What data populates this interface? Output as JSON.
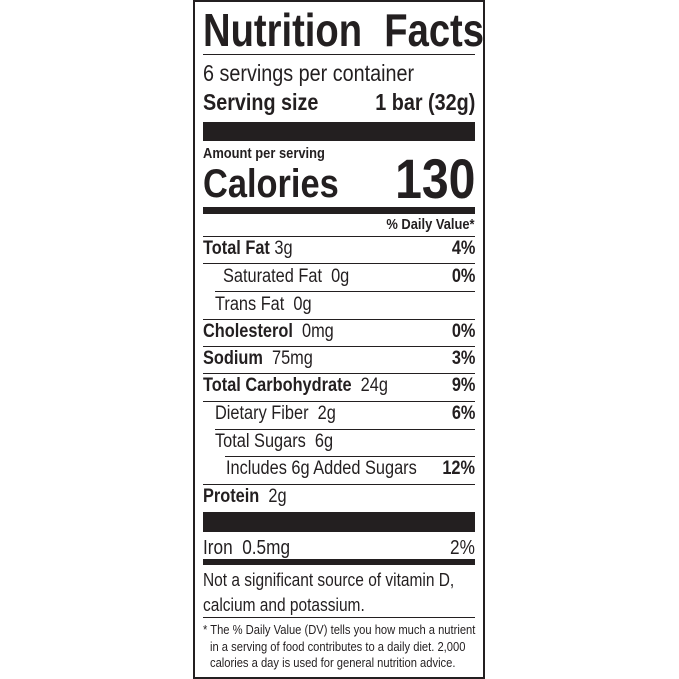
{
  "title": "Nutrition Facts",
  "servings_per_container": "6 servings per container",
  "serving_size": {
    "label": "Serving size",
    "value": "1 bar (32g)"
  },
  "amount_per_serving": "Amount per serving",
  "calories": {
    "label": "Calories",
    "value": "130"
  },
  "daily_value_header": "% Daily Value*",
  "nutrients": [
    {
      "name": "Total Fat",
      "amount": "3g",
      "dv": "4%"
    },
    {
      "name": "Saturated Fat",
      "amount": "0g",
      "dv": "0%"
    },
    {
      "name": "Trans Fat",
      "amount": "0g",
      "dv": ""
    },
    {
      "name": "Cholesterol",
      "amount": "0mg",
      "dv": "0%"
    },
    {
      "name": "Sodium",
      "amount": "75mg",
      "dv": "3%"
    },
    {
      "name": "Total Carbohydrate",
      "amount": "24g",
      "dv": "9%"
    },
    {
      "name": "Dietary Fiber",
      "amount": "2g",
      "dv": "6%"
    },
    {
      "name": "Total Sugars",
      "amount": "6g",
      "dv": ""
    },
    {
      "name": "Includes 6g Added Sugars",
      "amount": "",
      "dv": "12%"
    },
    {
      "name": "Protein",
      "amount": "2g",
      "dv": ""
    }
  ],
  "iron": {
    "name": "Iron",
    "amount": "0.5mg",
    "dv": "2%"
  },
  "not_significant": [
    "Not a significant source of vitamin D,",
    "calcium and potassium."
  ],
  "footnote": [
    "* The % Daily Value (DV) tells you how much a nutrient",
    "in a serving of food contributes to a daily diet. 2,000",
    "calories a day is used for general nutrition advice."
  ]
}
